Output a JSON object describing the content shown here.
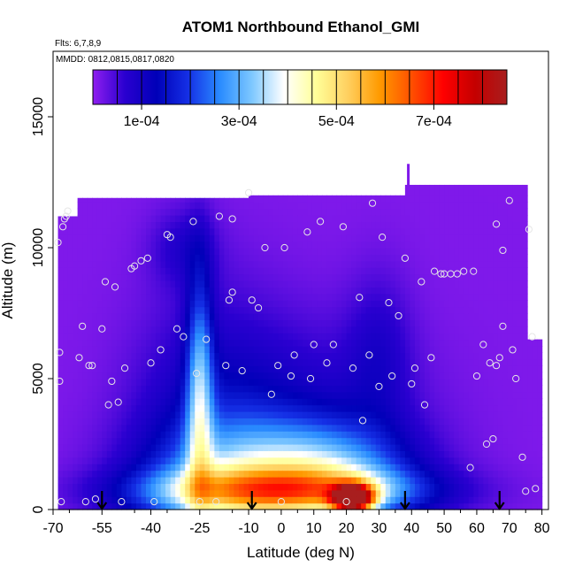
{
  "chart_data": {
    "type": "heatmap",
    "title": "ATOM1 Northbound Ethanol_GMI",
    "flights_note": "Flts: 6,7,8,9",
    "dates_note": "MMDD: 0812,0815,0817,0820",
    "xlabel": "Latitude (deg N)",
    "ylabel": "Altitude (m)",
    "xlim": [
      -70,
      82
    ],
    "ylim": [
      0,
      17500
    ],
    "x_ticks": [
      "-70",
      "-55",
      "-40",
      "-25",
      "-10",
      "0",
      "10",
      "20",
      "30",
      "40",
      "50",
      "60",
      "70",
      "80"
    ],
    "y_ticks": [
      "0",
      "5000",
      "10000",
      "15000"
    ],
    "colorbar": {
      "min": 0,
      "max": 0.00085,
      "tick_labels": [
        "1e-04",
        "3e-04",
        "5e-04",
        "7e-04"
      ],
      "tick_values": [
        0.0001,
        0.0003,
        0.0005,
        0.0007
      ],
      "colors": [
        "#8f1eef",
        "#2a00d0",
        "#0000b8",
        "#1530e6",
        "#2a8cff",
        "#7ec8ff",
        "#ffffff",
        "#ffff99",
        "#ffd060",
        "#ff9a00",
        "#ff5000",
        "#ff0000",
        "#c40000",
        "#a81e1e"
      ]
    },
    "background_value": 1e-05,
    "plumes": [
      {
        "center": [
          -22,
          2500
        ],
        "radius": [
          22,
          5500
        ],
        "value": 9e-05
      },
      {
        "center": [
          -12,
          1200
        ],
        "radius": [
          30,
          2200
        ],
        "value": 0.00018
      },
      {
        "center": [
          5,
          3000
        ],
        "radius": [
          35,
          4000
        ],
        "value": 8e-05
      },
      {
        "center": [
          15,
          1500
        ],
        "radius": [
          25,
          1800
        ],
        "value": 0.0002
      },
      {
        "center": [
          0,
          700
        ],
        "radius": [
          40,
          900
        ],
        "value": 0.00035
      },
      {
        "center": [
          -25,
          4500
        ],
        "radius": [
          4,
          4500
        ],
        "value": 0.00024
      },
      {
        "center": [
          22,
          450
        ],
        "radius": [
          6,
          500
        ],
        "value": 0.00075
      },
      {
        "center": [
          -30,
          10000
        ],
        "radius": [
          10,
          1500
        ],
        "value": 6e-05
      },
      {
        "center": [
          30,
          6000
        ],
        "radius": [
          10,
          3000
        ],
        "value": 6e-05
      }
    ],
    "sample_points": [
      [
        -68.5,
        10200
      ],
      [
        -68,
        6000
      ],
      [
        -68,
        4900
      ],
      [
        -67.5,
        300
      ],
      [
        -67,
        10800
      ],
      [
        -66.5,
        11100
      ],
      [
        -66,
        11200
      ],
      [
        -65.5,
        11400
      ],
      [
        -62,
        5800
      ],
      [
        -61,
        7000
      ],
      [
        -59,
        5500
      ],
      [
        -58,
        5500
      ],
      [
        -57,
        400
      ],
      [
        -55,
        6900
      ],
      [
        -54,
        8700
      ],
      [
        -53,
        4000
      ],
      [
        -52,
        4900
      ],
      [
        -51,
        8500
      ],
      [
        -50,
        4100
      ],
      [
        -49,
        300
      ],
      [
        -48,
        5400
      ],
      [
        -46,
        9200
      ],
      [
        -45,
        9300
      ],
      [
        -43,
        9500
      ],
      [
        -41,
        9600
      ],
      [
        -40,
        5600
      ],
      [
        -39,
        300
      ],
      [
        -37,
        6100
      ],
      [
        -35,
        10500
      ],
      [
        -34,
        10400
      ],
      [
        -32,
        6900
      ],
      [
        -30,
        6600
      ],
      [
        -27,
        11000
      ],
      [
        -26,
        5200
      ],
      [
        -25,
        300
      ],
      [
        -23,
        6500
      ],
      [
        -19,
        11200
      ],
      [
        -17,
        5500
      ],
      [
        -16,
        8000
      ],
      [
        -15,
        8300
      ],
      [
        -15,
        11100
      ],
      [
        -12,
        5300
      ],
      [
        -10,
        12100
      ],
      [
        -9,
        8000
      ],
      [
        -7,
        7700
      ],
      [
        -5,
        10000
      ],
      [
        -3,
        4400
      ],
      [
        -1,
        5500
      ],
      [
        1,
        10000
      ],
      [
        3,
        5100
      ],
      [
        4,
        5900
      ],
      [
        8,
        10600
      ],
      [
        9,
        5000
      ],
      [
        10,
        6300
      ],
      [
        12,
        11000
      ],
      [
        14,
        5600
      ],
      [
        16,
        6300
      ],
      [
        19,
        10800
      ],
      [
        22,
        5400
      ],
      [
        24,
        8100
      ],
      [
        25,
        3400
      ],
      [
        27,
        5900
      ],
      [
        28,
        11700
      ],
      [
        30,
        4700
      ],
      [
        31,
        10400
      ],
      [
        33,
        7900
      ],
      [
        34,
        5100
      ],
      [
        36,
        7400
      ],
      [
        38,
        9600
      ],
      [
        40,
        4800
      ],
      [
        41,
        5400
      ],
      [
        43,
        8700
      ],
      [
        44,
        4000
      ],
      [
        46,
        5800
      ],
      [
        47,
        9100
      ],
      [
        49,
        9000
      ],
      [
        50,
        9000
      ],
      [
        52,
        9000
      ],
      [
        54,
        9000
      ],
      [
        56,
        9100
      ],
      [
        58,
        1600
      ],
      [
        59,
        9100
      ],
      [
        60,
        5100
      ],
      [
        62,
        6300
      ],
      [
        63,
        2500
      ],
      [
        64,
        5600
      ],
      [
        65,
        2700
      ],
      [
        66,
        10900
      ],
      [
        66,
        5500
      ],
      [
        67,
        5800
      ],
      [
        68,
        9900
      ],
      [
        68,
        7000
      ],
      [
        70,
        11800
      ],
      [
        71,
        6100
      ],
      [
        72,
        5000
      ],
      [
        74,
        2000
      ],
      [
        75,
        700
      ],
      [
        76,
        10700
      ],
      [
        77,
        6600
      ],
      [
        78,
        800
      ],
      [
        -20,
        300
      ],
      [
        0,
        300
      ],
      [
        20,
        300
      ],
      [
        -60,
        300
      ]
    ],
    "flight_markers_lat": [
      -55,
      -9,
      38,
      67
    ],
    "data_region": {
      "segments": [
        {
          "lat": [
            -68.5,
            -62
          ],
          "alt_top": 11200
        },
        {
          "lat": [
            -62,
            -10
          ],
          "alt_top": 11900
        },
        {
          "lat": [
            -10,
            38
          ],
          "alt_top": 12000
        },
        {
          "lat": [
            38,
            76
          ],
          "alt_top": 12400
        },
        {
          "lat": [
            76,
            80
          ],
          "alt_top": 6500
        }
      ],
      "top_spike": {
        "lat": 39,
        "alt_top": 13200
      }
    }
  }
}
